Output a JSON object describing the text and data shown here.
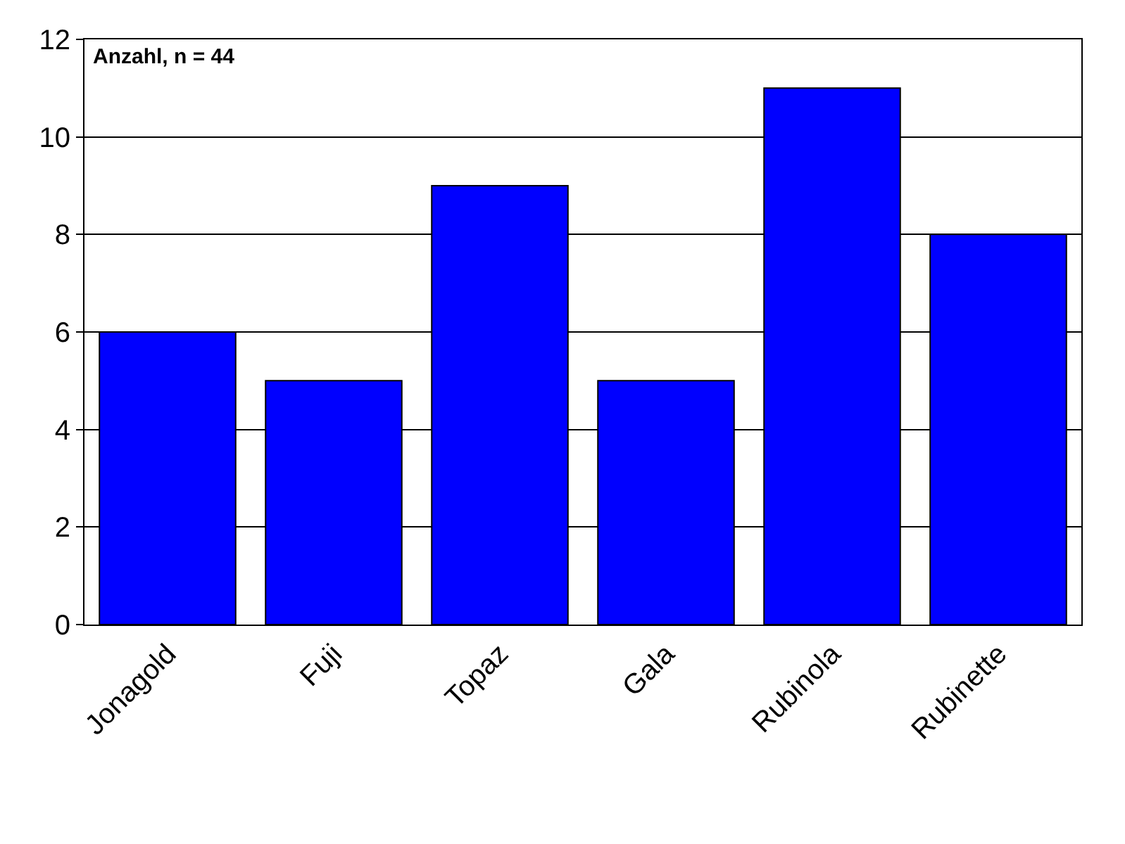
{
  "chart_data": {
    "type": "bar",
    "categories": [
      "Jonagold",
      "Fuji",
      "Topaz",
      "Gala",
      "Rubinola",
      "Rubinette"
    ],
    "values": [
      6,
      5,
      9,
      5,
      11,
      8
    ],
    "color": "#0000ff",
    "ylim": [
      0,
      12
    ],
    "yticks": [
      0,
      2,
      4,
      6,
      8,
      10,
      12
    ],
    "grid": "y",
    "annotations": [
      "Anzahl, n = 44"
    ]
  }
}
